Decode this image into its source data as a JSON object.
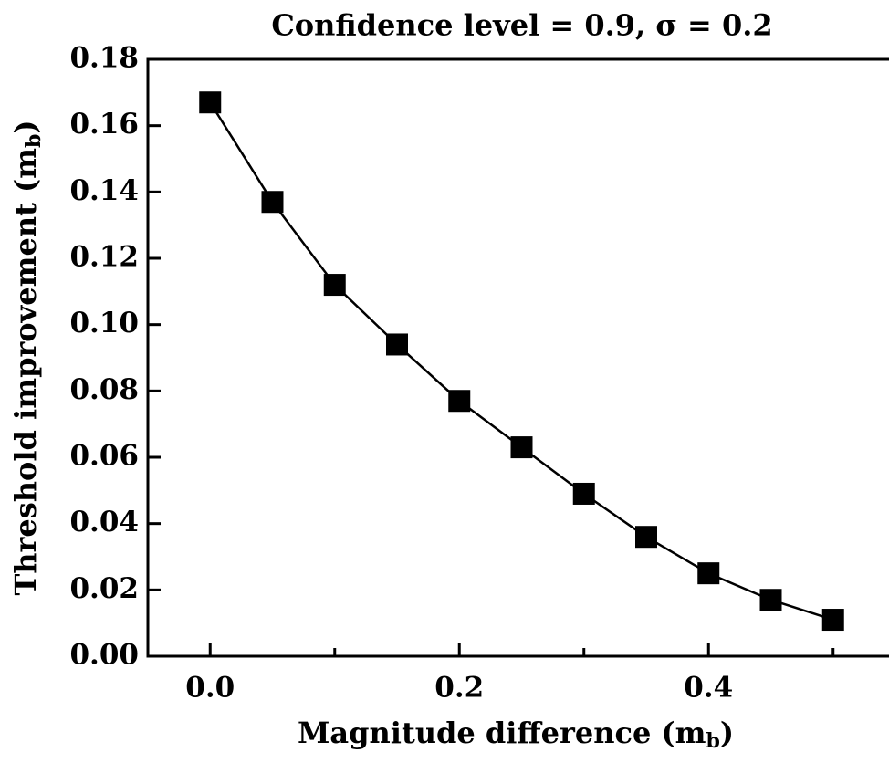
{
  "chart_data": {
    "type": "line",
    "title": "Confidence level = 0.9,   σ = 0.2",
    "xlabel": [
      "Magnitude difference (m",
      "b",
      ")"
    ],
    "ylabel": [
      "Threshold improvement (m",
      "b",
      ")"
    ],
    "x": [
      0.0,
      0.05,
      0.1,
      0.15,
      0.2,
      0.25,
      0.3,
      0.35,
      0.4,
      0.45,
      0.5
    ],
    "series": [
      {
        "color": "#000000",
        "values": [
          0.167,
          0.137,
          0.112,
          0.094,
          0.077,
          0.063,
          0.049,
          0.036,
          0.025,
          0.017,
          0.011
        ]
      }
    ],
    "xlim": [
      -0.05,
      0.55
    ],
    "xticks": [
      {
        "value": 0.0,
        "label": "0.0"
      },
      {
        "value": 0.2,
        "label": "0.2"
      },
      {
        "value": 0.4,
        "label": "0.4"
      }
    ],
    "xminorticks": [
      0.1,
      0.3,
      0.5
    ],
    "ylim": [
      0,
      0.18
    ],
    "yticks": [
      {
        "value": 0,
        "label": "0.00"
      },
      {
        "value": 0.02,
        "label": "0.02"
      },
      {
        "value": 0.04,
        "label": "0.04"
      },
      {
        "value": 0.06,
        "label": "0.06"
      },
      {
        "value": 0.08,
        "label": "0.08"
      },
      {
        "value": 0.1,
        "label": "0.10"
      },
      {
        "value": 0.12,
        "label": "0.12"
      },
      {
        "value": 0.14,
        "label": "0.14"
      },
      {
        "value": 0.16,
        "label": "0.16"
      },
      {
        "value": 0.18,
        "label": "0.18"
      }
    ],
    "grid": false
  }
}
